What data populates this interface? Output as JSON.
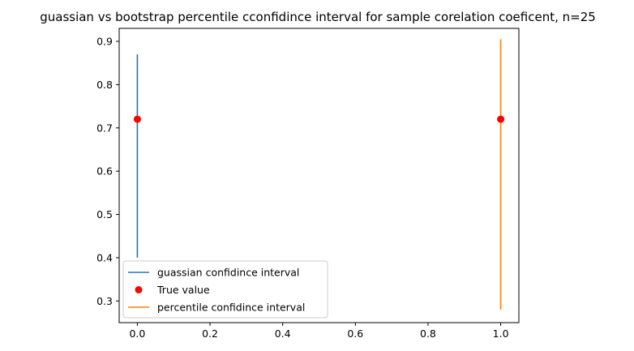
{
  "chart_data": {
    "type": "line",
    "title": "guassian vs bootstrap percentile cconfidince interval for sample corelation coeficent, n=25",
    "xlabel": "",
    "ylabel": "",
    "xlim": [
      -0.05,
      1.05
    ],
    "ylim": [
      0.25,
      0.93
    ],
    "xticks": [
      0.0,
      0.2,
      0.4,
      0.6,
      0.8,
      1.0
    ],
    "xtick_labels": [
      "0.0",
      "0.2",
      "0.4",
      "0.6",
      "0.8",
      "1.0"
    ],
    "yticks": [
      0.3,
      0.4,
      0.5,
      0.6,
      0.7,
      0.8,
      0.9
    ],
    "ytick_labels": [
      "0.3",
      "0.4",
      "0.5",
      "0.6",
      "0.7",
      "0.8",
      "0.9"
    ],
    "grid": false,
    "legend_position": "lower-left",
    "series": [
      {
        "name": "guassian confidince interval",
        "kind": "vertical-line",
        "color": "#1f77b4",
        "x": [
          0,
          0
        ],
        "y": [
          0.4,
          0.87
        ]
      },
      {
        "name": "True value",
        "kind": "scatter",
        "color": "#ff0000",
        "x": [
          0,
          1
        ],
        "y": [
          0.72,
          0.72
        ]
      },
      {
        "name": "percentile confidince interval",
        "kind": "vertical-line",
        "color": "#ff7f0e",
        "x": [
          1,
          1
        ],
        "y": [
          0.28,
          0.905
        ]
      }
    ]
  }
}
